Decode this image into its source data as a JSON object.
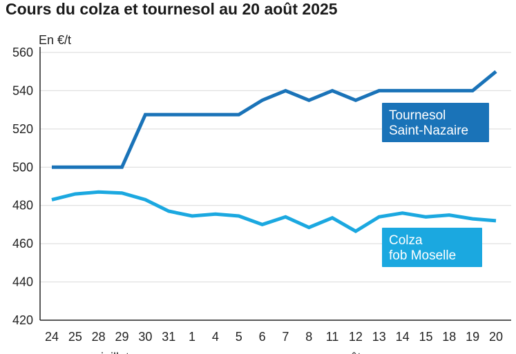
{
  "title": "Cours du colza et tournesol au 20 août 2025",
  "colors": {
    "tournesol": "#1a73b8",
    "colza": "#1ba8e0",
    "grid": "#d9d9d9",
    "axis": "#222222"
  },
  "chart_data": {
    "type": "line",
    "title": "Cours du colza et tournesol au 20 août 2025",
    "ylabel": "En €/t",
    "xlabel": "",
    "ylim": [
      420,
      560
    ],
    "yticks": [
      420,
      440,
      460,
      480,
      500,
      520,
      540,
      560
    ],
    "categories": [
      "24",
      "25",
      "28",
      "29",
      "30",
      "31",
      "1",
      "4",
      "5",
      "6",
      "7",
      "8",
      "11",
      "12",
      "13",
      "14",
      "15",
      "18",
      "19",
      "20"
    ],
    "month_labels": [
      {
        "text": "juillet",
        "at_category": 3
      },
      {
        "text": "août",
        "at_category": 13
      }
    ],
    "grid": true,
    "series": [
      {
        "name": "Tournesol Saint-Nazaire",
        "label_lines": [
          "Tournesol",
          "Saint-Nazaire"
        ],
        "values": [
          500,
          500,
          500,
          500,
          527.5,
          527.5,
          527.5,
          527.5,
          527.5,
          535,
          540,
          535,
          540,
          535,
          540,
          540,
          540,
          540,
          540,
          550
        ]
      },
      {
        "name": "Colza fob Moselle",
        "label_lines": [
          "Colza",
          "fob Moselle"
        ],
        "values": [
          483,
          486,
          487,
          486.5,
          483,
          477,
          474.5,
          475.5,
          474.5,
          470,
          474,
          468.5,
          473.5,
          466.5,
          474,
          476,
          474,
          475,
          473,
          472
        ]
      }
    ]
  }
}
